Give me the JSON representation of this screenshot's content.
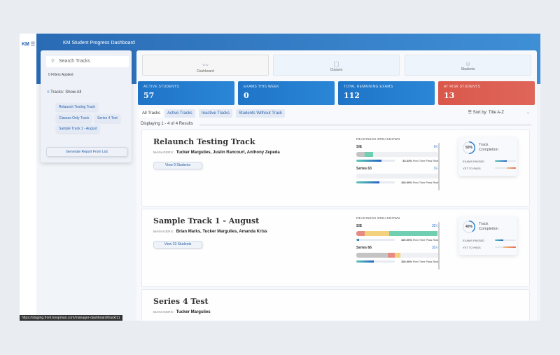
{
  "app": {
    "logo": "KM",
    "title": "KM Student Progress Dashboard",
    "status_url": "https://staging.front.knopman.com/manager-dashboard/track/11"
  },
  "sidebar": {
    "search_placeholder": "Search Tracks",
    "filters_applied": "0 Filters Applied",
    "tracks_filter": "Tracks: Show All",
    "chips": [
      "Relaunch Testing Track",
      "Classes Only Track",
      "Series 4 Test",
      "Sample Track 1 - August"
    ],
    "generate": "Generate Report From List"
  },
  "nav": [
    {
      "label": "Dashboard",
      "icon": "chart-line-icon"
    },
    {
      "label": "Classes",
      "icon": "classes-icon"
    },
    {
      "label": "Students",
      "icon": "students-icon"
    }
  ],
  "stats": [
    {
      "label": "ACTIVE STUDENTS",
      "value": "57"
    },
    {
      "label": "EXAMS THIS WEEK",
      "value": "0"
    },
    {
      "label": "TOTAL REMAINING EXAMS",
      "value": "112"
    },
    {
      "label": "AT RISK STUDENTS",
      "value": "13"
    }
  ],
  "tabs": [
    "All Tracks",
    "Active Tracks",
    "Inactive Tracks",
    "Students Without Track"
  ],
  "sort": "Sort by: Title A-Z",
  "displaying": "Displaying 1 - 4 of 4 Results",
  "colors": {
    "primary": "#1f74c7",
    "risk": "#d9574b",
    "gray": "#c4c4c4",
    "red": "#e88a84",
    "yellow": "#f3d27e",
    "green": "#6fcfb0"
  },
  "readiness_label": "READINESS BREAKDOWN",
  "managers_label": "MANAGERS:",
  "completion_label": "Track Completion",
  "passed_label": "EXAMS PASSED",
  "yet_label": "YET TO PASS",
  "pass_rate_label": "First Time Pass Rate",
  "tracks": [
    {
      "title": "Relaunch Testing Track",
      "managers": "Tucker Margulies, Justin Rancourt, Anthony Zepeda",
      "button": "View 9 Students",
      "completion": 50,
      "completion_text": "50%",
      "passed_pct": 55,
      "yet_pct": 45,
      "exams": [
        {
          "name": "SIE",
          "count": "9",
          "segments": [
            [
              "gray",
              0,
              10
            ],
            [
              "green",
              10,
              10
            ]
          ],
          "pass_pct": 65,
          "pass_rate": "33.33%"
        },
        {
          "name": "Series 63",
          "count": "3",
          "segments": [],
          "pass_pct": 60,
          "pass_rate": "100.00%"
        }
      ]
    },
    {
      "title": "Sample Track 1 - August",
      "managers": "Brian Marks, Tucker Margulies, Amanda Kriss",
      "button": "View 33 Students",
      "completion": 40,
      "completion_text": "40%",
      "passed_pct": 40,
      "yet_pct": 60,
      "exams": [
        {
          "name": "SIE",
          "count": "32",
          "segments": [
            [
              "red",
              0,
              10
            ],
            [
              "yellow",
              10,
              30
            ],
            [
              "green",
              40,
              58
            ]
          ],
          "pass_pct": 8,
          "pass_rate": "100.00%"
        },
        {
          "name": "Series 66",
          "count": "32",
          "segments": [
            [
              "gray",
              0,
              38
            ],
            [
              "red",
              38,
              9
            ],
            [
              "yellow",
              47,
              6
            ]
          ],
          "pass_pct": 45,
          "pass_rate": "100.00%"
        }
      ]
    },
    {
      "title": "Series 4 Test",
      "managers": "Tucker Margulies"
    }
  ]
}
